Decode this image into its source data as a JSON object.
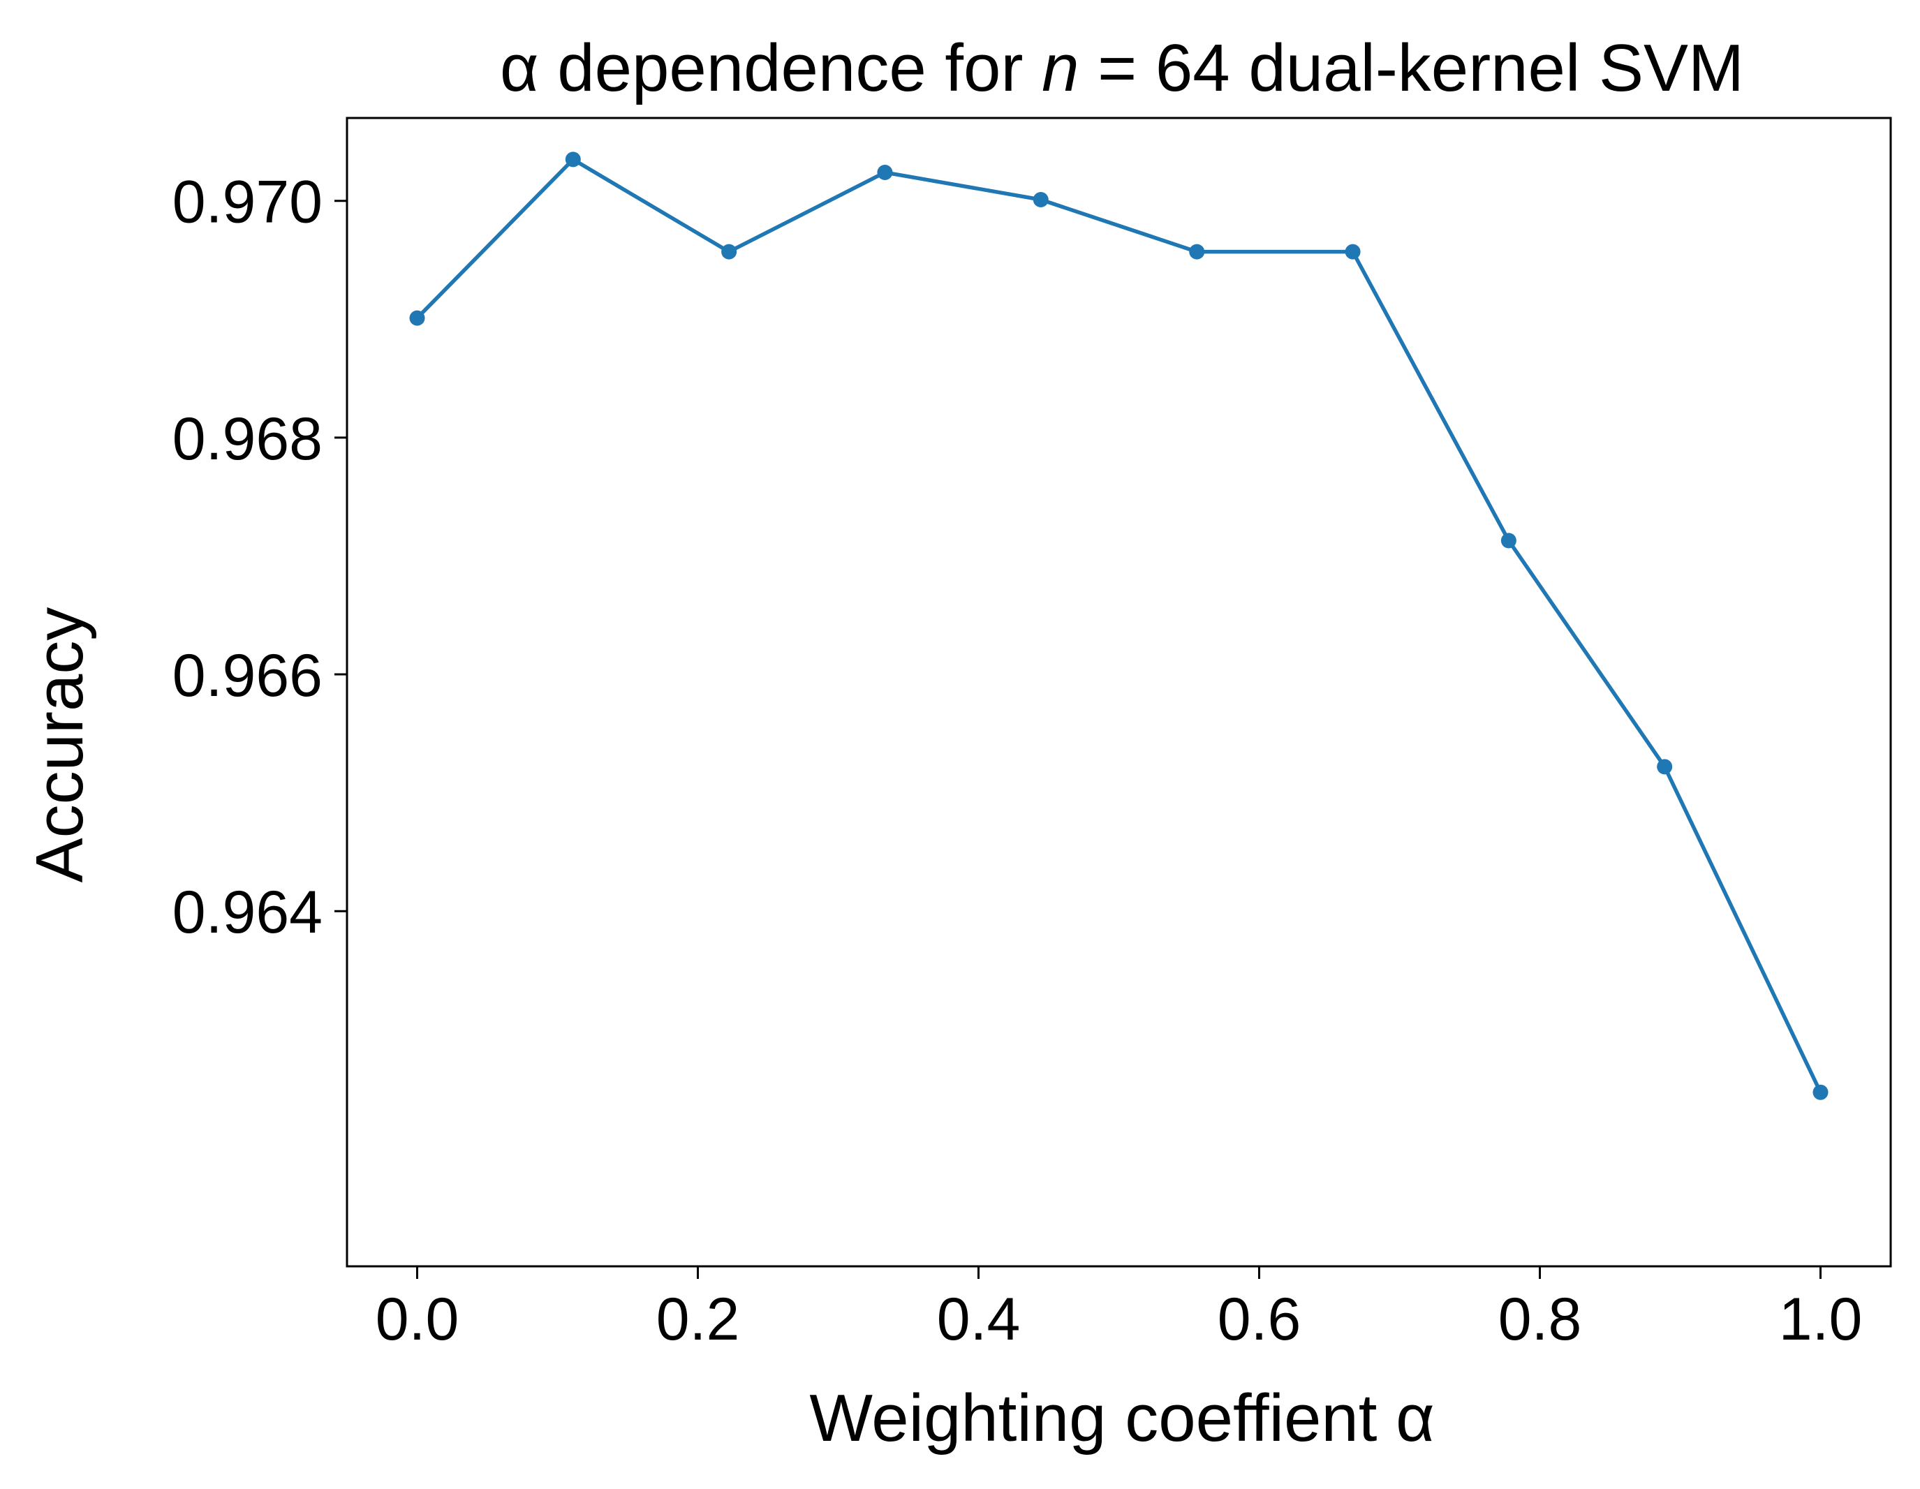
{
  "chart_data": {
    "type": "line",
    "title": {
      "prefix": "α dependence for ",
      "italic_var": "n",
      "suffix": " = 64 dual-kernel SVM"
    },
    "xlabel": "Weighting coeffient α",
    "ylabel": "Accuracy",
    "xlim": [
      -0.05,
      1.05
    ],
    "ylim": [
      0.961,
      0.9707
    ],
    "x_ticks": [
      0.0,
      0.2,
      0.4,
      0.6,
      0.8,
      1.0
    ],
    "x_tick_labels": [
      "0.0",
      "0.2",
      "0.4",
      "0.6",
      "0.8",
      "1.0"
    ],
    "y_ticks": [
      0.964,
      0.966,
      0.968,
      0.97
    ],
    "y_tick_labels": [
      "0.964",
      "0.966",
      "0.968",
      "0.970"
    ],
    "grid": false,
    "series": [
      {
        "color": "#1f77b4",
        "marker": "circle",
        "x": [
          0.0,
          0.1111,
          0.2222,
          0.3333,
          0.4444,
          0.5556,
          0.6667,
          0.7778,
          0.8889,
          1.0
        ],
        "y": [
          0.96901,
          0.97035,
          0.96957,
          0.97024,
          0.97001,
          0.96957,
          0.96957,
          0.96713,
          0.96522,
          0.96247
        ]
      }
    ]
  }
}
